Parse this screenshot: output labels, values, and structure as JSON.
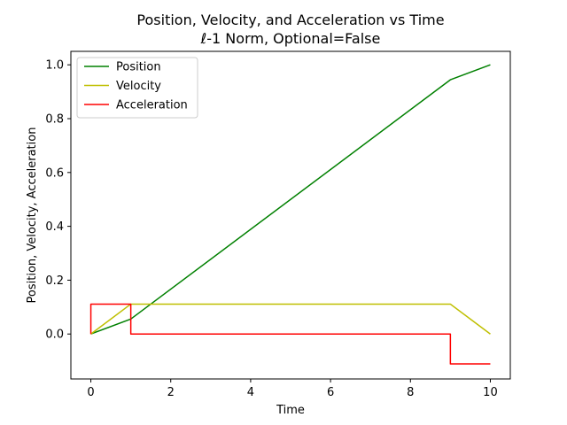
{
  "chart_data": {
    "type": "line",
    "title": "Position, Velocity, and Acceleration vs Time",
    "subtitle": "ℓ-1 Norm, Optional=False",
    "xlabel": "Time",
    "ylabel": "Position, Velocity, Acceleration",
    "xlim": [
      -0.5,
      10.5
    ],
    "ylim": [
      -0.167,
      1.05
    ],
    "xticks": [
      0,
      2,
      4,
      6,
      8,
      10
    ],
    "xtick_labels": [
      "0",
      "2",
      "4",
      "6",
      "8",
      "10"
    ],
    "yticks": [
      0.0,
      0.2,
      0.4,
      0.6,
      0.8,
      1.0
    ],
    "ytick_labels": [
      "0.0",
      "0.2",
      "0.4",
      "0.6",
      "0.8",
      "1.0"
    ],
    "grid": false,
    "legend_position": "top-left",
    "series": [
      {
        "name": "Position",
        "color": "#008000",
        "step": false,
        "x": [
          0,
          1,
          9,
          10
        ],
        "y": [
          0,
          0.0556,
          0.9444,
          1.0
        ]
      },
      {
        "name": "Velocity",
        "color": "#bfbf00",
        "step": false,
        "x": [
          0,
          1,
          9,
          10
        ],
        "y": [
          0,
          0.1111,
          0.1111,
          0
        ]
      },
      {
        "name": "Acceleration",
        "color": "#ff0000",
        "step": true,
        "x": [
          0,
          0,
          1,
          1,
          9,
          9,
          10
        ],
        "y": [
          0,
          0.1111,
          0.1111,
          0,
          0,
          -0.1111,
          -0.1111
        ]
      }
    ]
  }
}
